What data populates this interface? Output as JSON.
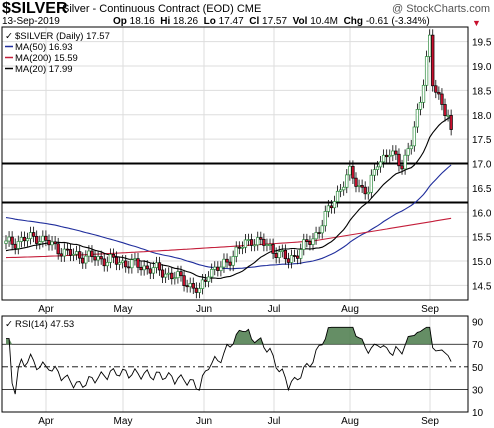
{
  "header": {
    "symbol": "$SILVER",
    "description": "Silver - Continuous Contract (EOD)",
    "exchange": "CME",
    "watermark": "@ StockCharts.com",
    "date": "13-Sep-2019",
    "open_label": "Op",
    "open": "18.16",
    "high_label": "Hi",
    "high": "18.26",
    "low_label": "Lo",
    "low": "17.47",
    "close_label": "Cl",
    "close": "17.57",
    "volume_label": "Vol",
    "volume": "10.4M",
    "change_label": "Chg",
    "change": "-0.61 (-3.34%)"
  },
  "chart_data": [
    {
      "type": "candlestick",
      "legend": [
        {
          "label": "$SILVER (Daily) 17.57",
          "color": "#000000",
          "marker": "check"
        },
        {
          "label": "MA(50) 16.93",
          "color": "#1f2d9c",
          "marker": "line"
        },
        {
          "label": "MA(200) 15.59",
          "color": "#c41e3a",
          "marker": "line"
        },
        {
          "label": "MA(20) 17.99",
          "color": "#000000",
          "marker": "line"
        }
      ],
      "legend_position": "top-left",
      "ylim": [
        14.2,
        19.8
      ],
      "y_ticks": [
        "14.5",
        "15.0",
        "15.5",
        "16.0",
        "16.5",
        "17.0",
        "17.5",
        "18.0",
        "18.5",
        "19.0",
        "19.5"
      ],
      "x_ticks": [
        "Apr",
        "May",
        "Jun",
        "Jul",
        "Aug",
        "Sep"
      ],
      "horizontal_lines": [
        17.0,
        16.2
      ],
      "grid": true,
      "up_color": "#2e8b3e",
      "down_color": "#c8102e"
    },
    {
      "type": "line",
      "legend": [
        {
          "label": "RSI(14) 47.53",
          "marker": "check"
        }
      ],
      "ylim": [
        10,
        95
      ],
      "y_ticks": [
        "90",
        "70",
        "50",
        "30",
        "10"
      ],
      "x_ticks": [
        "Apr",
        "May",
        "Jun",
        "Jul",
        "Aug",
        "Sep"
      ],
      "reference_lines": [
        70,
        50,
        30
      ],
      "overbought_fill_color": "#4a7a4a",
      "line_color": "#000000"
    }
  ]
}
